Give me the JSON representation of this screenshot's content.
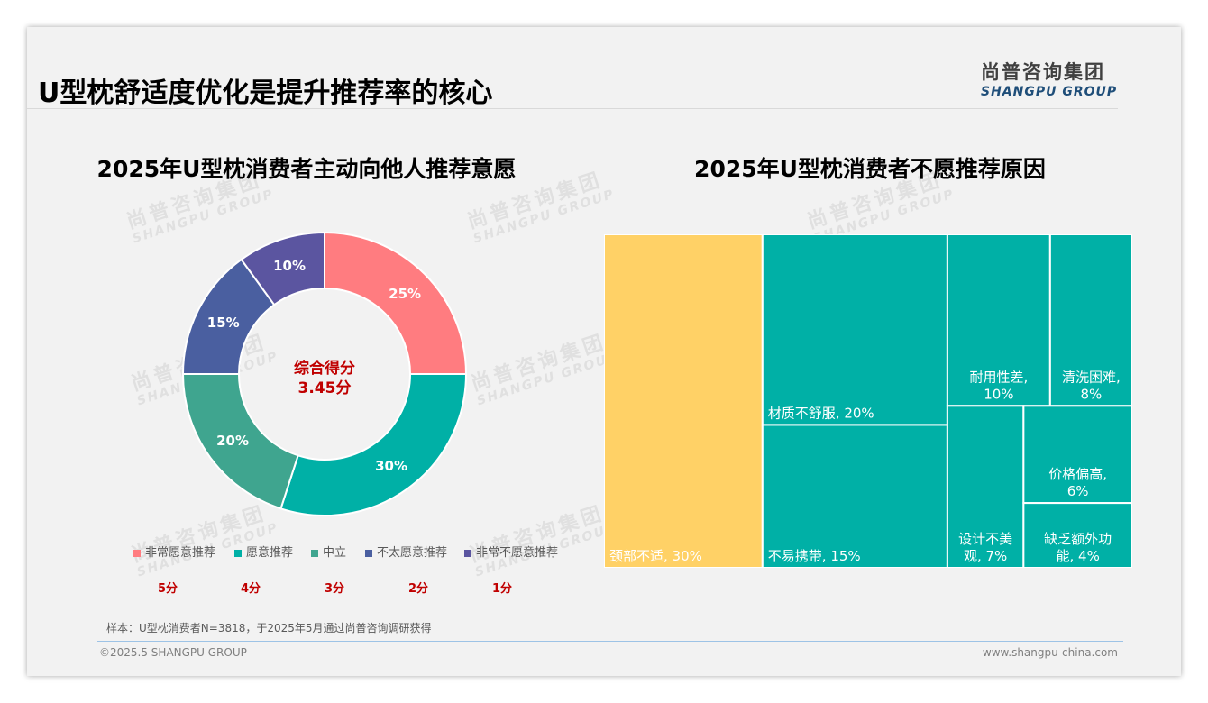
{
  "page": {
    "title": "U型枕舒适度优化是提升推荐率的核心",
    "logo_cn": "尚普咨询集团",
    "logo_en": "SHANGPU GROUP",
    "watermark_cn": "尚普咨询集团",
    "watermark_en": "SHANGPU GROUP",
    "note": "样本：U型枕消费者N=3818，于2025年5月通过尚普咨询调研获得",
    "footer_left": "©2025.5 SHANGPU GROUP",
    "footer_right": "www.shangpu-china.com"
  },
  "chart_data": [
    {
      "type": "pie",
      "title": "2025年U型枕消费者主动向他人推荐意愿",
      "center_label": "综合得分",
      "center_value": "3.45分",
      "slices": [
        {
          "name": "非常愿意推荐",
          "value": 25,
          "label": "25%",
          "color": "#ff7c80",
          "score": "5分"
        },
        {
          "name": "愿意推荐",
          "value": 30,
          "label": "30%",
          "color": "#00b0a6",
          "score": "4分"
        },
        {
          "name": "中立",
          "value": 20,
          "label": "20%",
          "color": "#3fa58f",
          "score": "3分"
        },
        {
          "name": "不太愿意推荐",
          "value": 15,
          "label": "15%",
          "color": "#4a5fa0",
          "score": "2分"
        },
        {
          "name": "非常不愿意推荐",
          "value": 10,
          "label": "10%",
          "color": "#5b55a0",
          "score": "1分"
        }
      ]
    },
    {
      "type": "treemap",
      "title": "2025年U型枕消费者不愿推荐原因",
      "items": [
        {
          "label": "颈部不适, 30%",
          "value": 30,
          "color": "#ffd166"
        },
        {
          "label": "材质不舒服, 20%",
          "value": 20,
          "color": "#00b0a6"
        },
        {
          "label": "不易携带, 15%",
          "value": 15,
          "color": "#00b0a6"
        },
        {
          "label": "耐用性差, 10%",
          "value": 10,
          "color": "#00b0a6"
        },
        {
          "label": "清洗困难, 8%",
          "value": 8,
          "color": "#00b0a6"
        },
        {
          "label": "设计不美观, 7%",
          "value": 7,
          "color": "#00b0a6"
        },
        {
          "label": "价格偏高, 6%",
          "value": 6,
          "color": "#00b0a6"
        },
        {
          "label": "缺乏额外功能, 4%",
          "value": 4,
          "color": "#00b0a6"
        }
      ]
    }
  ]
}
